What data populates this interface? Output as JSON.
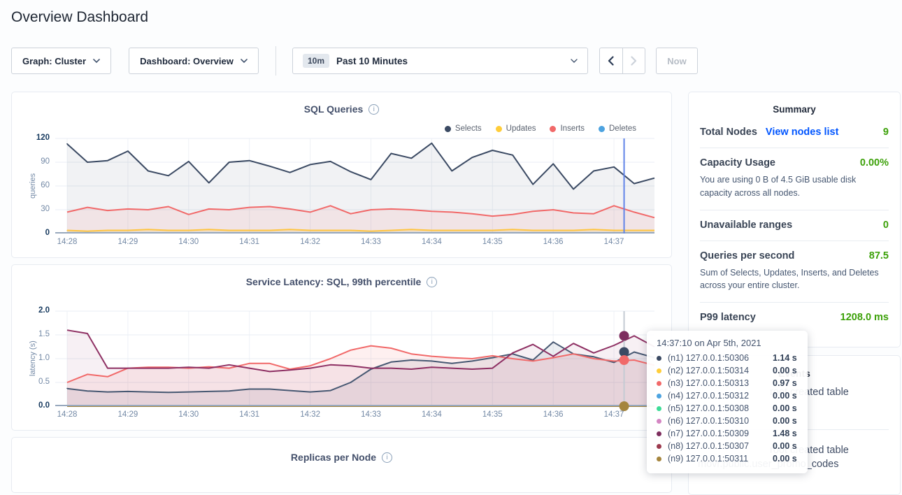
{
  "page": {
    "title": "Overview Dashboard"
  },
  "toolbar": {
    "graph_dropdown": "Graph: Cluster",
    "dashboard_dropdown": "Dashboard: Overview",
    "time_badge": "10m",
    "time_label": "Past 10 Minutes",
    "now_button": "Now"
  },
  "summary": {
    "title": "Summary",
    "rows": [
      {
        "label": "Total Nodes",
        "link": "View nodes list",
        "value": "9",
        "subtext": ""
      },
      {
        "label": "Capacity Usage",
        "link": "",
        "value": "0.00%",
        "subtext": "You are using 0 B of 4.5 GiB usable disk capacity across all nodes."
      },
      {
        "label": "Unavailable ranges",
        "link": "",
        "value": "0",
        "subtext": ""
      },
      {
        "label": "Queries per second",
        "link": "",
        "value": "87.5",
        "subtext": "Sum of Selects, Updates, Inserts, and Deletes across your entire cluster."
      },
      {
        "label": "P99 latency",
        "link": "",
        "value": "1208.0 ms",
        "subtext": ""
      }
    ],
    "accent_green": "#3da10a",
    "link_blue": "#0055ff"
  },
  "events": {
    "title": "Events",
    "items": [
      {
        "line1": "root created table",
        "line2": ""
      },
      {
        "line1": "root created table",
        "line2": "movr.public.user_promo_codes"
      }
    ]
  },
  "tooltip": {
    "time": "14:37:10",
    "on": "on",
    "date": "Apr 5th, 2021",
    "rows": [
      {
        "dot": "#3b4a63",
        "label": "(n1) 127.0.0.1:50306",
        "value": "1.14 s"
      },
      {
        "dot": "#ffcd3a",
        "label": "(n2) 127.0.0.1:50314",
        "value": "0.00 s"
      },
      {
        "dot": "#f16969",
        "label": "(n3) 127.0.0.1:50313",
        "value": "0.97 s"
      },
      {
        "dot": "#4da3e0",
        "label": "(n4) 127.0.0.1:50312",
        "value": "0.00 s"
      },
      {
        "dot": "#3ddc97",
        "label": "(n5) 127.0.0.1:50308",
        "value": "0.00 s"
      },
      {
        "dot": "#d486c3",
        "label": "(n6) 127.0.0.1:50310",
        "value": "0.00 s"
      },
      {
        "dot": "#7d2d5e",
        "label": "(n7) 127.0.0.1:50309",
        "value": "1.48 s"
      },
      {
        "dot": "#9c3a4e",
        "label": "(n8) 127.0.0.1:50307",
        "value": "0.00 s"
      },
      {
        "dot": "#a5853d",
        "label": "(n9) 127.0.0.1:50311",
        "value": "0.00 s"
      }
    ]
  },
  "chart_data": [
    {
      "type": "area",
      "title": "SQL Queries",
      "ylabel": "queries",
      "ylim": [
        0,
        120
      ],
      "yticks": [
        "0",
        "30",
        "60",
        "90",
        "120"
      ],
      "xticklabels": [
        "14:28",
        "14:29",
        "14:30",
        "14:31",
        "14:32",
        "14:33",
        "14:34",
        "14:35",
        "14:36",
        "14:37"
      ],
      "grid": true,
      "legend_position": "top-right",
      "legend": [
        {
          "label": "Selects",
          "color": "#3b4a63"
        },
        {
          "label": "Updates",
          "color": "#ffcd3a"
        },
        {
          "label": "Inserts",
          "color": "#f16969"
        },
        {
          "label": "Deletes",
          "color": "#4da3e0"
        }
      ],
      "series": [
        {
          "name": "Selects",
          "color": "#3b4a63",
          "fill": "rgba(71,88,114,0.08)",
          "values": [
            113,
            90,
            92,
            104,
            79,
            73,
            91,
            64,
            90,
            92,
            85,
            77,
            87,
            91,
            78,
            68,
            101,
            95,
            114,
            79,
            96,
            105,
            99,
            62,
            88,
            56,
            79,
            84,
            63,
            70
          ]
        },
        {
          "name": "Inserts",
          "color": "#f16969",
          "fill": "rgba(241,105,105,0.10)",
          "values": [
            27,
            33,
            29,
            31,
            30,
            34,
            24,
            31,
            30,
            33,
            34,
            31,
            27,
            35,
            25,
            30,
            31,
            30,
            28,
            27,
            25,
            22,
            24,
            28,
            30,
            26,
            25,
            35,
            27,
            20
          ]
        },
        {
          "name": "Updates",
          "color": "#ffc43f",
          "fill": "rgba(255,196,63,0.15)",
          "values": [
            4,
            3,
            4,
            4,
            5,
            4,
            4,
            5,
            4,
            4,
            4,
            5,
            4,
            4,
            4,
            3,
            4,
            5,
            4,
            4,
            4,
            4,
            5,
            4,
            4,
            4,
            5,
            4,
            4,
            4
          ]
        },
        {
          "name": "Deletes",
          "color": "#4da3e0",
          "fill": "none",
          "values": [
            1,
            1,
            1,
            1,
            1,
            1,
            1,
            1,
            1,
            1,
            1,
            1,
            1,
            1,
            1,
            1,
            1,
            1,
            1,
            1,
            1,
            1,
            1,
            1,
            1,
            1,
            1,
            1,
            1,
            1
          ]
        }
      ],
      "hover": {
        "index": 27.5,
        "line_color": "#5f83e8",
        "dots": []
      }
    },
    {
      "type": "area",
      "title": "Service Latency: SQL, 99th percentile",
      "ylabel": "latency (s)",
      "ylim": [
        0,
        2
      ],
      "yticks": [
        "0.0",
        "0.5",
        "1.0",
        "1.5",
        "2.0"
      ],
      "xticklabels": [
        "14:28",
        "14:29",
        "14:30",
        "14:31",
        "14:32",
        "14:33",
        "14:34",
        "14:35",
        "14:36",
        "14:37"
      ],
      "grid": true,
      "series": [
        {
          "name": "(n1) 127.0.0.1:50306",
          "color": "#475872",
          "fill": "rgba(71,88,114,0.10)",
          "values": [
            0.37,
            0.32,
            0.3,
            0.31,
            0.3,
            0.29,
            0.3,
            0.31,
            0.32,
            0.36,
            0.36,
            0.33,
            0.3,
            0.33,
            0.5,
            0.78,
            0.93,
            0.97,
            0.95,
            0.9,
            0.95,
            1.02,
            1.1,
            0.97,
            1.35,
            1.1,
            1.04,
            0.92,
            1.14,
            1.02
          ]
        },
        {
          "name": "(n3) 127.0.0.1:50313",
          "color": "#f16969",
          "fill": "rgba(241,105,105,0.10)",
          "values": [
            0.5,
            0.67,
            0.62,
            0.8,
            0.82,
            0.82,
            0.8,
            0.83,
            0.8,
            0.9,
            0.9,
            0.78,
            0.85,
            1.0,
            1.18,
            1.27,
            1.22,
            1.1,
            1.05,
            1.02,
            1.0,
            1.06,
            1.0,
            0.95,
            1.02,
            1.1,
            1.0,
            0.95,
            0.97,
            0.86
          ]
        },
        {
          "name": "(n7) 127.0.0.1:50309",
          "color": "#8e3063",
          "fill": "rgba(142,48,99,0.07)",
          "values": [
            1.6,
            1.53,
            0.8,
            0.8,
            0.8,
            0.8,
            0.82,
            0.8,
            0.87,
            0.8,
            0.73,
            0.76,
            0.8,
            0.87,
            0.85,
            0.8,
            0.8,
            0.78,
            0.82,
            0.8,
            0.78,
            0.8,
            1.12,
            1.3,
            1.05,
            1.32,
            1.12,
            1.28,
            1.48,
            1.25
          ]
        },
        {
          "name": "(n9) 127.0.0.1:50311",
          "color": "#a5853d",
          "fill": "none",
          "values": [
            0,
            0,
            0,
            0,
            0,
            0,
            0,
            0,
            0,
            0,
            0,
            0,
            0,
            0,
            0,
            0,
            0,
            0,
            0,
            0,
            0,
            0,
            0,
            0,
            0,
            0,
            0,
            0,
            0,
            0
          ]
        }
      ],
      "hover": {
        "index": 27.5,
        "line_color": "#c4cad3",
        "dots": [
          {
            "value": 1.48,
            "color": "#7d2d5e"
          },
          {
            "value": 1.14,
            "color": "#3b4a63"
          },
          {
            "value": 0.97,
            "color": "#f16969"
          },
          {
            "value": 0.0,
            "color": "#a5853d"
          }
        ]
      }
    },
    {
      "type": "area",
      "title": "Replicas per Node"
    }
  ]
}
